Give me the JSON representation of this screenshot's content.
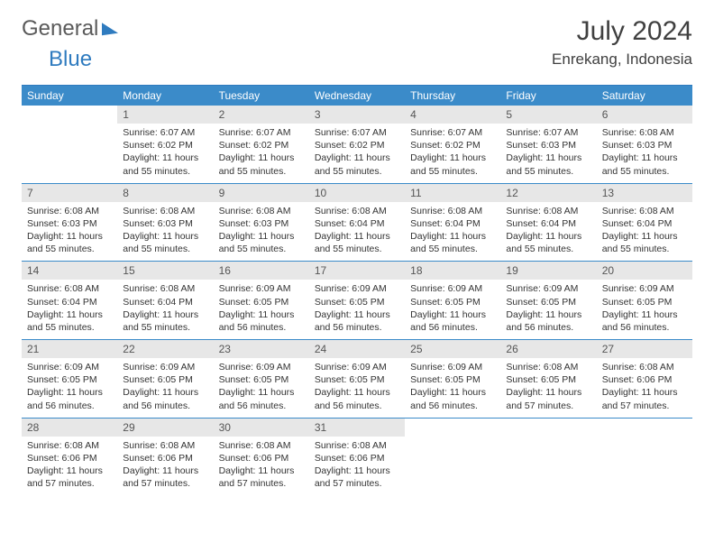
{
  "branding": {
    "part1": "General",
    "part2": "Blue"
  },
  "title": "July 2024",
  "location": "Enrekang, Indonesia",
  "colors": {
    "header_bg": "#3b8bc9",
    "rule": "#2f7bbf",
    "daynum_bg": "#e7e7e7",
    "text": "#333333"
  },
  "day_headers": [
    "Sunday",
    "Monday",
    "Tuesday",
    "Wednesday",
    "Thursday",
    "Friday",
    "Saturday"
  ],
  "weeks": [
    [
      {
        "blank": true
      },
      {
        "n": "1",
        "sunrise": "6:07 AM",
        "sunset": "6:02 PM",
        "dl": "11 hours and 55 minutes."
      },
      {
        "n": "2",
        "sunrise": "6:07 AM",
        "sunset": "6:02 PM",
        "dl": "11 hours and 55 minutes."
      },
      {
        "n": "3",
        "sunrise": "6:07 AM",
        "sunset": "6:02 PM",
        "dl": "11 hours and 55 minutes."
      },
      {
        "n": "4",
        "sunrise": "6:07 AM",
        "sunset": "6:02 PM",
        "dl": "11 hours and 55 minutes."
      },
      {
        "n": "5",
        "sunrise": "6:07 AM",
        "sunset": "6:03 PM",
        "dl": "11 hours and 55 minutes."
      },
      {
        "n": "6",
        "sunrise": "6:08 AM",
        "sunset": "6:03 PM",
        "dl": "11 hours and 55 minutes."
      }
    ],
    [
      {
        "n": "7",
        "sunrise": "6:08 AM",
        "sunset": "6:03 PM",
        "dl": "11 hours and 55 minutes."
      },
      {
        "n": "8",
        "sunrise": "6:08 AM",
        "sunset": "6:03 PM",
        "dl": "11 hours and 55 minutes."
      },
      {
        "n": "9",
        "sunrise": "6:08 AM",
        "sunset": "6:03 PM",
        "dl": "11 hours and 55 minutes."
      },
      {
        "n": "10",
        "sunrise": "6:08 AM",
        "sunset": "6:04 PM",
        "dl": "11 hours and 55 minutes."
      },
      {
        "n": "11",
        "sunrise": "6:08 AM",
        "sunset": "6:04 PM",
        "dl": "11 hours and 55 minutes."
      },
      {
        "n": "12",
        "sunrise": "6:08 AM",
        "sunset": "6:04 PM",
        "dl": "11 hours and 55 minutes."
      },
      {
        "n": "13",
        "sunrise": "6:08 AM",
        "sunset": "6:04 PM",
        "dl": "11 hours and 55 minutes."
      }
    ],
    [
      {
        "n": "14",
        "sunrise": "6:08 AM",
        "sunset": "6:04 PM",
        "dl": "11 hours and 55 minutes."
      },
      {
        "n": "15",
        "sunrise": "6:08 AM",
        "sunset": "6:04 PM",
        "dl": "11 hours and 55 minutes."
      },
      {
        "n": "16",
        "sunrise": "6:09 AM",
        "sunset": "6:05 PM",
        "dl": "11 hours and 56 minutes."
      },
      {
        "n": "17",
        "sunrise": "6:09 AM",
        "sunset": "6:05 PM",
        "dl": "11 hours and 56 minutes."
      },
      {
        "n": "18",
        "sunrise": "6:09 AM",
        "sunset": "6:05 PM",
        "dl": "11 hours and 56 minutes."
      },
      {
        "n": "19",
        "sunrise": "6:09 AM",
        "sunset": "6:05 PM",
        "dl": "11 hours and 56 minutes."
      },
      {
        "n": "20",
        "sunrise": "6:09 AM",
        "sunset": "6:05 PM",
        "dl": "11 hours and 56 minutes."
      }
    ],
    [
      {
        "n": "21",
        "sunrise": "6:09 AM",
        "sunset": "6:05 PM",
        "dl": "11 hours and 56 minutes."
      },
      {
        "n": "22",
        "sunrise": "6:09 AM",
        "sunset": "6:05 PM",
        "dl": "11 hours and 56 minutes."
      },
      {
        "n": "23",
        "sunrise": "6:09 AM",
        "sunset": "6:05 PM",
        "dl": "11 hours and 56 minutes."
      },
      {
        "n": "24",
        "sunrise": "6:09 AM",
        "sunset": "6:05 PM",
        "dl": "11 hours and 56 minutes."
      },
      {
        "n": "25",
        "sunrise": "6:09 AM",
        "sunset": "6:05 PM",
        "dl": "11 hours and 56 minutes."
      },
      {
        "n": "26",
        "sunrise": "6:08 AM",
        "sunset": "6:05 PM",
        "dl": "11 hours and 57 minutes."
      },
      {
        "n": "27",
        "sunrise": "6:08 AM",
        "sunset": "6:06 PM",
        "dl": "11 hours and 57 minutes."
      }
    ],
    [
      {
        "n": "28",
        "sunrise": "6:08 AM",
        "sunset": "6:06 PM",
        "dl": "11 hours and 57 minutes."
      },
      {
        "n": "29",
        "sunrise": "6:08 AM",
        "sunset": "6:06 PM",
        "dl": "11 hours and 57 minutes."
      },
      {
        "n": "30",
        "sunrise": "6:08 AM",
        "sunset": "6:06 PM",
        "dl": "11 hours and 57 minutes."
      },
      {
        "n": "31",
        "sunrise": "6:08 AM",
        "sunset": "6:06 PM",
        "dl": "11 hours and 57 minutes."
      },
      {
        "blank": true
      },
      {
        "blank": true
      },
      {
        "blank": true
      }
    ]
  ],
  "labels": {
    "sunrise": "Sunrise:",
    "sunset": "Sunset:",
    "daylight": "Daylight:"
  }
}
